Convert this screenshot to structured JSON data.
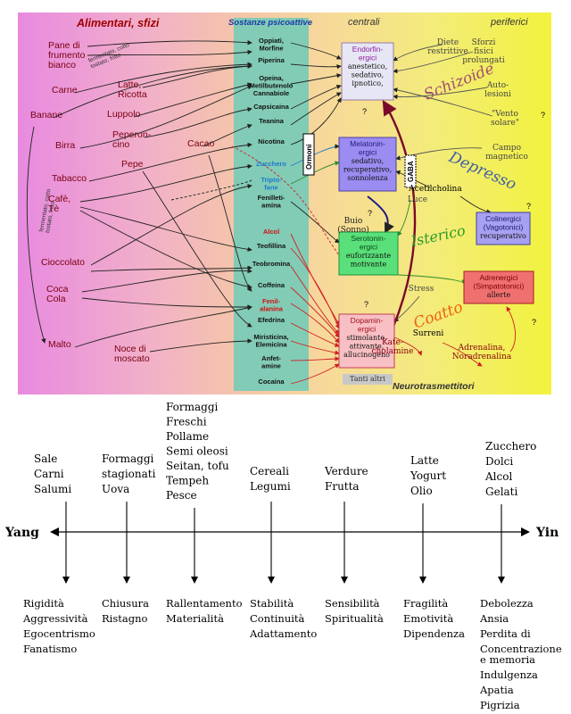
{
  "diagram": {
    "title_foods": "Alimentari, sfizi",
    "title_substances": "Sostanze psicoattive",
    "title_central": "centrali",
    "title_peripheral": "periferici",
    "footer": "Neurotrasmettitori",
    "foods": [
      "Pane di\nfrumento\nbianco",
      "Carne",
      "Banane",
      "Latte,\nRicotta",
      "Luppolo",
      "Peperon-\ncino",
      "Cacao",
      "Pepe",
      "Birra",
      "Tabacco",
      "Cafè,\nTè",
      "Cioccolato",
      "Coca\nCola",
      "Malto",
      "Noce di\nmoscato"
    ],
    "arrow_notes": [
      "fermentato, cotto\ntostato, fritto",
      "fermentato, cotto\ntostato, fritto"
    ],
    "substances": [
      "Oppiati,\nMorfine",
      "Piperina",
      "Opeina,\nMetilbutenolo\nCannabiole",
      "Capsicaina",
      "Teanina",
      "Nicotina",
      "Zucchero",
      "Tripto-\nfane",
      "Fenilleti-\namina",
      "Alcol",
      "Teofillina",
      "Teobromina",
      "Coffeina",
      "Fenil-\nalanina",
      "Efedrina",
      "Miristicina,\nElemicina",
      "Anfet-\namine",
      "Cocaina"
    ],
    "hormones_label": "Ormoni",
    "gaba_label": "GABA",
    "neuro_boxes": [
      {
        "title": "Endorfin-\nergici",
        "desc": "anestetico,\nsedativo,\nipnotico,"
      },
      {
        "title": "Melatonin-\nergici",
        "desc": "sedativo,\nrecuperativo,\nsonnolenza"
      },
      {
        "title": "Serotonin-\nergici",
        "desc": "euforizzante\nmotivante"
      },
      {
        "title": "Dopamin-\nergici",
        "desc": "stimolante,\nattivante,\nallucinogeno"
      },
      {
        "title": "Colinergici\n(Vagotonici)",
        "desc": "recuperativo"
      },
      {
        "title": "Adrenergici\n(Simpatotonici)",
        "desc": "allerte"
      }
    ],
    "peripheral_labels": [
      "Diete\nrestrittive",
      "Sforzi\nfisici\nprolungati",
      "Auto-\nlesioni",
      "\"Vento\nsolare\"",
      "Campo\nmagnetico",
      "Acetilcholina",
      "Buio\n(Sonno)",
      "Luce",
      "Stress",
      "Surreni",
      "Kate-\ncholamine",
      "Adrenalina,\nNoradrenalina",
      "Tanti altri"
    ],
    "types": [
      "Schizoide",
      "Depresso",
      "Isterico",
      "Coatto"
    ],
    "question": "?"
  },
  "axis": {
    "left_label": "Yang",
    "right_label": "Yin",
    "columns": [
      {
        "foods": [
          "Sale",
          "Carni",
          "Salumi"
        ],
        "traits": [
          "Rigidità",
          "Aggressività",
          "Egocentrismo",
          "Fanatismo"
        ]
      },
      {
        "foods": [
          "Formaggi",
          "stagionati",
          "Uova"
        ],
        "traits": [
          "Chiusura",
          "Ristagno"
        ]
      },
      {
        "foods": [
          "Formaggi",
          "Freschi",
          "Pollame",
          "Semi oleosi",
          "Seitan, tofu",
          "Tempeh",
          "Pesce"
        ],
        "traits": [
          "Rallentamento",
          "Materialità"
        ]
      },
      {
        "foods": [
          "Cereali",
          "Legumi"
        ],
        "traits": [
          "Stabilità",
          "Continuità",
          "Adattamento"
        ]
      },
      {
        "foods": [
          "Verdure",
          "Frutta"
        ],
        "traits": [
          "Sensibilità",
          "Spiritualità"
        ]
      },
      {
        "foods": [
          "Latte",
          "Yogurt",
          "Olio"
        ],
        "traits": [
          "Fragilità",
          "Emotività",
          "Dipendenza"
        ]
      },
      {
        "foods": [
          "Zucchero",
          "Dolci",
          "Alcol",
          "Gelati"
        ],
        "traits": [
          "Debolezza",
          "Ansia",
          "Perdita di",
          "Concentrazione",
          "e memoria",
          "Indulgenza",
          "Apatia",
          "Pigrizia"
        ]
      }
    ]
  }
}
